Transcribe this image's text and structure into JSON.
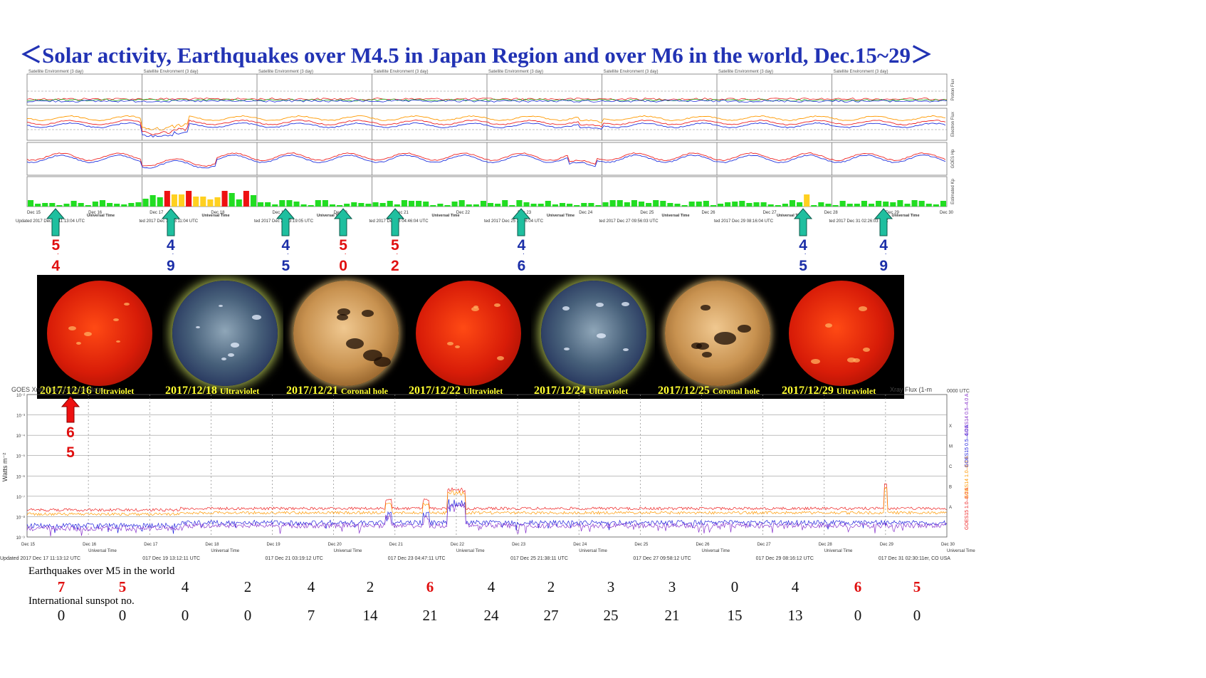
{
  "title": "＜Solar activity, Earthquakes over M4.5 in Japan Region and over M6 in the world, Dec.15~29＞",
  "satellite": {
    "panel_header": "Satellite Environment (3 day)",
    "x_axis_label": "Universal Time",
    "day_labels": [
      "Dec 15",
      "Dec 16",
      "Dec 17",
      "Dec 18",
      "Dec 19",
      "Dec 20",
      "Dec 21",
      "Dec 22",
      "Dec 23",
      "Dec 24",
      "Dec 25",
      "Dec 26",
      "Dec 27",
      "Dec 28",
      "Dec 29",
      "Dec 30"
    ],
    "updated_labels": [
      "Updated 2017 Dec 17 11:13:04 UTC",
      "ted 2017 Dec 19 13:11:04 UTC",
      "ted 2017 Dec 21 03:19:05 UTC",
      "ted 2017 Dec 23 04:46:04 UTC",
      "ted 2017 Dec 25 21:36:04 UTC",
      "ted 2017 Dec 27 09:56:03 UTC",
      "ted 2017 Dec 29 08:16:04 UTC",
      "ted 2017 Dec 31 02:26:03 UTC"
    ],
    "side_labels": [
      "Proton Flux",
      "Electron Flux",
      "GOES Hp",
      "Estimated Kp"
    ],
    "kp_colors": {
      "green": "#22dd22",
      "yellow": "#ffd020",
      "red": "#ee1111"
    }
  },
  "japan_quakes": [
    {
      "x": 0.5,
      "color": "red",
      "d1": "5",
      "d2": "4"
    },
    {
      "x": 2.5,
      "color": "blue",
      "d1": "4",
      "d2": "9"
    },
    {
      "x": 4.5,
      "color": "blue",
      "d1": "4",
      "d2": "5"
    },
    {
      "x": 5.5,
      "color": "red",
      "d1": "5",
      "d2": "0"
    },
    {
      "x": 6.4,
      "color": "red",
      "d1": "5",
      "d2": "2"
    },
    {
      "x": 8.6,
      "color": "blue",
      "d1": "4",
      "d2": "6"
    },
    {
      "x": 13.5,
      "color": "blue",
      "d1": "4",
      "d2": "5"
    },
    {
      "x": 14.9,
      "color": "blue",
      "d1": "4",
      "d2": "9"
    }
  ],
  "world_quake_marker": {
    "d1": "6",
    "d2": "5"
  },
  "sun_images": [
    {
      "date": "2017/12/16",
      "kind": "Ultraviolet",
      "style": "red"
    },
    {
      "date": "2017/12/18",
      "kind": "Ultraviolet",
      "style": "blue"
    },
    {
      "date": "2017/12/21",
      "kind": "Coronal hole",
      "style": "gold"
    },
    {
      "date": "2017/12/22",
      "kind": "Ultraviolet",
      "style": "red"
    },
    {
      "date": "2017/12/24",
      "kind": "Ultraviolet",
      "style": "blue"
    },
    {
      "date": "2017/12/25",
      "kind": "Coronal hole",
      "style": "gold"
    },
    {
      "date": "2017/12/29",
      "kind": "Ultraviolet",
      "style": "red"
    }
  ],
  "xray": {
    "header_left": "GOES Xray Flux (1-minute data)",
    "header_right": "Xray Flux (1-m",
    "header_utc": "0000 UTC",
    "ylabel": "Watts m⁻²",
    "y_ticks": [
      "10⁻²",
      "10⁻³",
      "10⁻⁴",
      "10⁻⁵",
      "10⁻⁶",
      "10⁻⁷",
      "10⁻⁸",
      "10⁻⁹"
    ],
    "classes": [
      "X",
      "M",
      "C",
      "B",
      "A"
    ],
    "legend": [
      "GOES15 1.0–8.0 A",
      "GOES14 1.0–8.0 A",
      "GOES15 0.5–4.0 A",
      "GOES14 0.5–4.0 A"
    ],
    "legend_colors": [
      "#ee2222",
      "#ff9900",
      "#2222dd",
      "#8833cc"
    ],
    "day_labels": [
      "Dec 15",
      "Dec 16",
      "Dec 17",
      "Dec 18",
      "Dec 19",
      "Dec 20",
      "Dec 21",
      "Dec 22",
      "Dec 23",
      "Dec 24",
      "Dec 25",
      "Dec 26",
      "Dec 27",
      "Dec 28",
      "Dec 29",
      "Dec 30"
    ],
    "updated_labels": [
      "Updated 2017 Dec 17 11:13:12 UTC",
      "017 Dec 19 13:12:11 UTC",
      "017 Dec 21 03:19:12 UTC",
      "017 Dec 23 04:47:11 UTC",
      "017 Dec 25 21:38:11 UTC",
      "017 Dec 27 09:58:12 UTC",
      "017 Dec 29 08:16:12 UTC",
      "017 Dec 31 02:30:11er, CO USA"
    ],
    "x_axis_label": "Universal Time"
  },
  "chart_data": {
    "type": "table",
    "categories": [
      "Dec 15",
      "Dec 16",
      "Dec 17",
      "Dec 18",
      "Dec 19",
      "Dec 20",
      "Dec 21",
      "Dec 22",
      "Dec 23",
      "Dec 24",
      "Dec 25",
      "Dec 26",
      "Dec 27",
      "Dec 28",
      "Dec 29"
    ],
    "series": [
      {
        "name": "Earthquakes over M5 in the world",
        "values": [
          7,
          5,
          4,
          2,
          4,
          2,
          6,
          4,
          2,
          3,
          3,
          0,
          4,
          6,
          5
        ]
      },
      {
        "name": "International sunspot no.",
        "values": [
          0,
          0,
          0,
          0,
          7,
          14,
          21,
          24,
          27,
          25,
          21,
          15,
          13,
          0,
          0
        ]
      }
    ],
    "highlight_quake_values": [
      7,
      5,
      6,
      6,
      5
    ]
  },
  "labels": {
    "quake_row": "Earthquakes over M5 in the world",
    "sunspot_row": "International sunspot no."
  }
}
